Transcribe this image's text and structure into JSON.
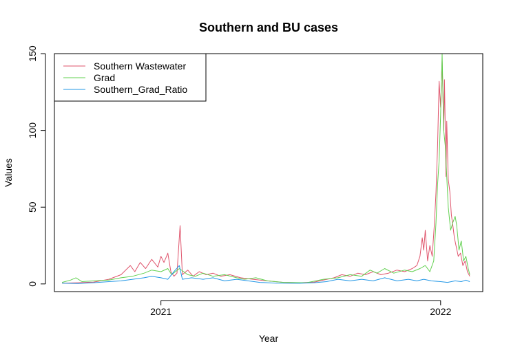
{
  "chart_data": {
    "type": "line",
    "title": "Southern and BU cases",
    "xlabel": "Year",
    "ylabel": "Values",
    "xlim": [
      "2020-08-15",
      "2022-02-25"
    ],
    "ylim": [
      -5,
      150
    ],
    "x_ticks": [
      {
        "label": "2021",
        "date": "2021-01-01"
      },
      {
        "label": "2022",
        "date": "2022-01-01"
      }
    ],
    "y_ticks": [
      0,
      50,
      100,
      150
    ],
    "legend_position": "top-left",
    "series": [
      {
        "name": "Southern Wastewater",
        "color": "#DF536B",
        "points": [
          [
            "2020-08-25",
            0.5
          ],
          [
            "2020-09-15",
            0.8
          ],
          [
            "2020-10-05",
            1.2
          ],
          [
            "2020-10-25",
            3
          ],
          [
            "2020-11-10",
            6
          ],
          [
            "2020-11-22",
            12
          ],
          [
            "2020-11-28",
            8
          ],
          [
            "2020-12-05",
            14
          ],
          [
            "2020-12-12",
            10
          ],
          [
            "2020-12-20",
            16
          ],
          [
            "2020-12-28",
            11
          ],
          [
            "2021-01-01",
            18
          ],
          [
            "2021-01-05",
            14
          ],
          [
            "2021-01-10",
            20
          ],
          [
            "2021-01-14",
            8
          ],
          [
            "2021-01-18",
            5
          ],
          [
            "2021-01-22",
            7
          ],
          [
            "2021-01-26",
            38
          ],
          [
            "2021-01-29",
            6
          ],
          [
            "2021-02-05",
            9
          ],
          [
            "2021-02-12",
            5
          ],
          [
            "2021-02-20",
            8
          ],
          [
            "2021-03-01",
            6
          ],
          [
            "2021-03-10",
            7
          ],
          [
            "2021-03-20",
            5
          ],
          [
            "2021-04-01",
            6
          ],
          [
            "2021-04-15",
            4
          ],
          [
            "2021-05-01",
            3
          ],
          [
            "2021-05-20",
            2
          ],
          [
            "2021-06-10",
            1
          ],
          [
            "2021-07-01",
            0.8
          ],
          [
            "2021-07-20",
            1.2
          ],
          [
            "2021-08-01",
            2.5
          ],
          [
            "2021-08-15",
            4
          ],
          [
            "2021-08-25",
            6
          ],
          [
            "2021-09-05",
            5
          ],
          [
            "2021-09-15",
            7
          ],
          [
            "2021-09-25",
            6
          ],
          [
            "2021-10-05",
            8
          ],
          [
            "2021-10-15",
            6
          ],
          [
            "2021-10-25",
            7
          ],
          [
            "2021-11-05",
            9
          ],
          [
            "2021-11-15",
            8
          ],
          [
            "2021-11-25",
            10
          ],
          [
            "2021-12-01",
            12
          ],
          [
            "2021-12-05",
            18
          ],
          [
            "2021-12-08",
            30
          ],
          [
            "2021-12-10",
            22
          ],
          [
            "2021-12-12",
            35
          ],
          [
            "2021-12-15",
            15
          ],
          [
            "2021-12-18",
            25
          ],
          [
            "2021-12-21",
            18
          ],
          [
            "2021-12-24",
            40
          ],
          [
            "2021-12-26",
            60
          ],
          [
            "2021-12-28",
            90
          ],
          [
            "2021-12-30",
            132
          ],
          [
            "2022-01-01",
            115
          ],
          [
            "2022-01-03",
            146
          ],
          [
            "2022-01-05",
            100
          ],
          [
            "2022-01-06",
            133
          ],
          [
            "2022-01-08",
            70
          ],
          [
            "2022-01-09",
            106
          ],
          [
            "2022-01-11",
            68
          ],
          [
            "2022-01-13",
            60
          ],
          [
            "2022-01-15",
            45
          ],
          [
            "2022-01-17",
            38
          ],
          [
            "2022-01-19",
            30
          ],
          [
            "2022-01-21",
            25
          ],
          [
            "2022-01-24",
            18
          ],
          [
            "2022-01-27",
            20
          ],
          [
            "2022-01-30",
            12
          ],
          [
            "2022-02-02",
            15
          ],
          [
            "2022-02-05",
            8
          ],
          [
            "2022-02-08",
            5
          ]
        ]
      },
      {
        "name": "Grad",
        "color": "#61D04F",
        "points": [
          [
            "2020-08-25",
            1
          ],
          [
            "2020-09-05",
            2.5
          ],
          [
            "2020-09-12",
            4
          ],
          [
            "2020-09-20",
            1.5
          ],
          [
            "2020-10-05",
            2
          ],
          [
            "2020-10-25",
            2.5
          ],
          [
            "2020-11-10",
            4
          ],
          [
            "2020-11-25",
            5
          ],
          [
            "2020-12-10",
            7
          ],
          [
            "2020-12-20",
            9
          ],
          [
            "2021-01-01",
            8
          ],
          [
            "2021-01-10",
            10
          ],
          [
            "2021-01-15",
            6
          ],
          [
            "2021-01-25",
            10
          ],
          [
            "2021-02-05",
            6
          ],
          [
            "2021-02-15",
            5
          ],
          [
            "2021-02-25",
            7
          ],
          [
            "2021-03-10",
            5
          ],
          [
            "2021-03-25",
            6
          ],
          [
            "2021-04-10",
            4
          ],
          [
            "2021-04-20",
            3
          ],
          [
            "2021-05-05",
            4
          ],
          [
            "2021-05-20",
            2
          ],
          [
            "2021-06-10",
            1
          ],
          [
            "2021-07-10",
            0.8
          ],
          [
            "2021-08-01",
            3
          ],
          [
            "2021-08-20",
            4
          ],
          [
            "2021-09-05",
            6
          ],
          [
            "2021-09-20",
            5
          ],
          [
            "2021-10-01",
            9
          ],
          [
            "2021-10-10",
            7
          ],
          [
            "2021-10-20",
            10
          ],
          [
            "2021-11-01",
            7
          ],
          [
            "2021-11-15",
            9
          ],
          [
            "2021-11-25",
            8
          ],
          [
            "2021-12-05",
            10
          ],
          [
            "2021-12-12",
            12
          ],
          [
            "2021-12-18",
            8
          ],
          [
            "2021-12-23",
            15
          ],
          [
            "2021-12-26",
            40
          ],
          [
            "2021-12-28",
            65
          ],
          [
            "2021-12-30",
            80
          ],
          [
            "2022-01-01",
            110
          ],
          [
            "2022-01-03",
            150
          ],
          [
            "2022-01-05",
            100
          ],
          [
            "2022-01-07",
            90
          ],
          [
            "2022-01-09",
            70
          ],
          [
            "2022-01-11",
            50
          ],
          [
            "2022-01-14",
            35
          ],
          [
            "2022-01-17",
            40
          ],
          [
            "2022-01-20",
            44
          ],
          [
            "2022-01-22",
            38
          ],
          [
            "2022-01-25",
            22
          ],
          [
            "2022-01-28",
            28
          ],
          [
            "2022-01-31",
            15
          ],
          [
            "2022-02-03",
            18
          ],
          [
            "2022-02-06",
            10
          ],
          [
            "2022-02-08",
            6
          ]
        ]
      },
      {
        "name": "Southern_Grad_Ratio",
        "color": "#2297E6",
        "points": [
          [
            "2020-08-25",
            0.5
          ],
          [
            "2020-09-15",
            0.3
          ],
          [
            "2020-10-05",
            0.8
          ],
          [
            "2020-10-25",
            1.5
          ],
          [
            "2020-11-10",
            2
          ],
          [
            "2020-11-25",
            3
          ],
          [
            "2020-12-10",
            4
          ],
          [
            "2020-12-20",
            5
          ],
          [
            "2021-01-01",
            4
          ],
          [
            "2021-01-10",
            3
          ],
          [
            "2021-01-18",
            8
          ],
          [
            "2021-01-25",
            12
          ],
          [
            "2021-01-29",
            3
          ],
          [
            "2021-02-10",
            4
          ],
          [
            "2021-02-25",
            3
          ],
          [
            "2021-03-10",
            4
          ],
          [
            "2021-03-25",
            2
          ],
          [
            "2021-04-10",
            3
          ],
          [
            "2021-04-25",
            2
          ],
          [
            "2021-05-10",
            1
          ],
          [
            "2021-06-01",
            0.5
          ],
          [
            "2021-07-01",
            0.4
          ],
          [
            "2021-07-20",
            0.8
          ],
          [
            "2021-08-05",
            1.5
          ],
          [
            "2021-08-20",
            3
          ],
          [
            "2021-09-05",
            2
          ],
          [
            "2021-09-20",
            3
          ],
          [
            "2021-10-05",
            2
          ],
          [
            "2021-10-20",
            4
          ],
          [
            "2021-11-05",
            2
          ],
          [
            "2021-11-20",
            3
          ],
          [
            "2021-12-01",
            2
          ],
          [
            "2021-12-10",
            3
          ],
          [
            "2021-12-20",
            2
          ],
          [
            "2022-01-01",
            1.5
          ],
          [
            "2022-01-10",
            1
          ],
          [
            "2022-01-20",
            2
          ],
          [
            "2022-01-28",
            1.5
          ],
          [
            "2022-02-03",
            2.5
          ],
          [
            "2022-02-08",
            1.5
          ]
        ]
      }
    ]
  }
}
